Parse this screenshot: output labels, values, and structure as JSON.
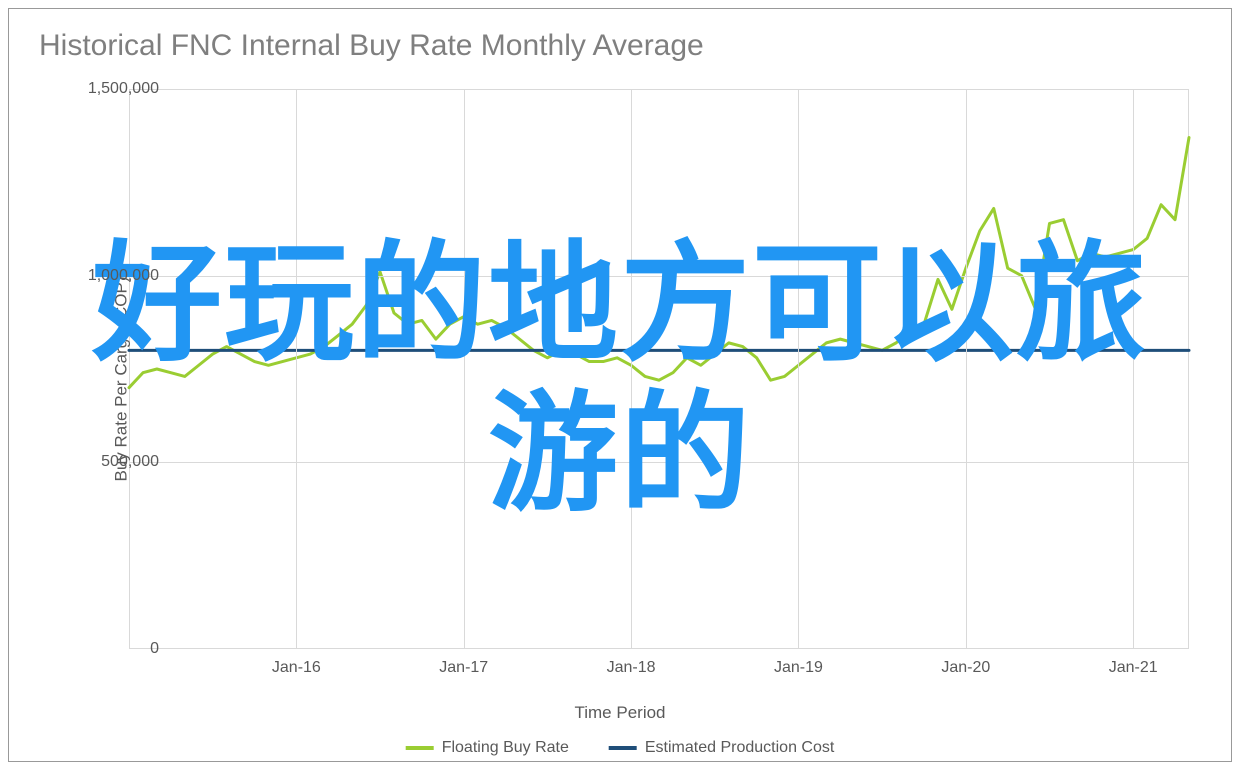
{
  "chart": {
    "type": "line",
    "title": "Historical FNC Internal Buy Rate Monthly Average",
    "title_fontsize": 30,
    "title_color": "#7f7f7f",
    "background_color": "#ffffff",
    "border_color": "#999999",
    "grid_color": "#d9d9d9",
    "tick_label_color": "#595959",
    "tick_label_fontsize": 16,
    "axis_label_color": "#595959",
    "axis_label_fontsize": 17,
    "x_axis_label": "Time Period",
    "y_axis_label": "Buy Rate Per Carga (COP)",
    "ylim": [
      0,
      1500000
    ],
    "ytick_step": 500000,
    "ytick_labels": [
      "0",
      "500,000",
      "1,000,000",
      "1,500,000"
    ],
    "x_tick_positions": [
      12,
      24,
      36,
      48,
      60,
      72
    ],
    "x_tick_labels": [
      "Jan-16",
      "Jan-17",
      "Jan-18",
      "Jan-19",
      "Jan-20",
      "Jan-21"
    ],
    "x_data_span": [
      0,
      76
    ],
    "series": [
      {
        "name": "Floating Buy Rate",
        "color": "#9acd32",
        "line_width": 3,
        "x": [
          0,
          1,
          2,
          3,
          4,
          5,
          6,
          7,
          8,
          9,
          10,
          11,
          12,
          13,
          14,
          15,
          16,
          17,
          18,
          19,
          20,
          21,
          22,
          23,
          24,
          25,
          26,
          27,
          28,
          29,
          30,
          31,
          32,
          33,
          34,
          35,
          36,
          37,
          38,
          39,
          40,
          41,
          42,
          43,
          44,
          45,
          46,
          47,
          48,
          49,
          50,
          51,
          52,
          53,
          54,
          55,
          56,
          57,
          58,
          59,
          60,
          61,
          62,
          63,
          64,
          65,
          66,
          67,
          68,
          69,
          70,
          71,
          72,
          73,
          74,
          75,
          76
        ],
        "y": [
          700000,
          740000,
          750000,
          740000,
          730000,
          760000,
          790000,
          810000,
          790000,
          770000,
          760000,
          770000,
          780000,
          790000,
          810000,
          840000,
          870000,
          920000,
          1010000,
          900000,
          870000,
          880000,
          830000,
          870000,
          890000,
          870000,
          880000,
          860000,
          830000,
          800000,
          780000,
          800000,
          790000,
          770000,
          770000,
          780000,
          760000,
          730000,
          720000,
          740000,
          780000,
          760000,
          790000,
          820000,
          810000,
          780000,
          720000,
          730000,
          760000,
          790000,
          820000,
          830000,
          820000,
          810000,
          800000,
          820000,
          850000,
          870000,
          990000,
          910000,
          1020000,
          1120000,
          1180000,
          1020000,
          1000000,
          910000,
          1140000,
          1150000,
          1040000,
          1060000,
          1050000,
          1060000,
          1070000,
          1100000,
          1190000,
          1150000,
          1370000
        ]
      },
      {
        "name": "Estimated Production Cost",
        "color": "#1f4e79",
        "line_width": 3,
        "x": [
          0,
          76
        ],
        "y": [
          800000,
          800000
        ]
      }
    ],
    "legend": {
      "items": [
        {
          "label": "Floating Buy Rate",
          "color": "#9acd32"
        },
        {
          "label": "Estimated Production Cost",
          "color": "#1f4e79"
        }
      ]
    }
  },
  "overlay": {
    "line1": "好玩的地方可以旅",
    "line2": "游的",
    "color": "#2196f3",
    "fontsize": 130,
    "fontweight": 900
  }
}
